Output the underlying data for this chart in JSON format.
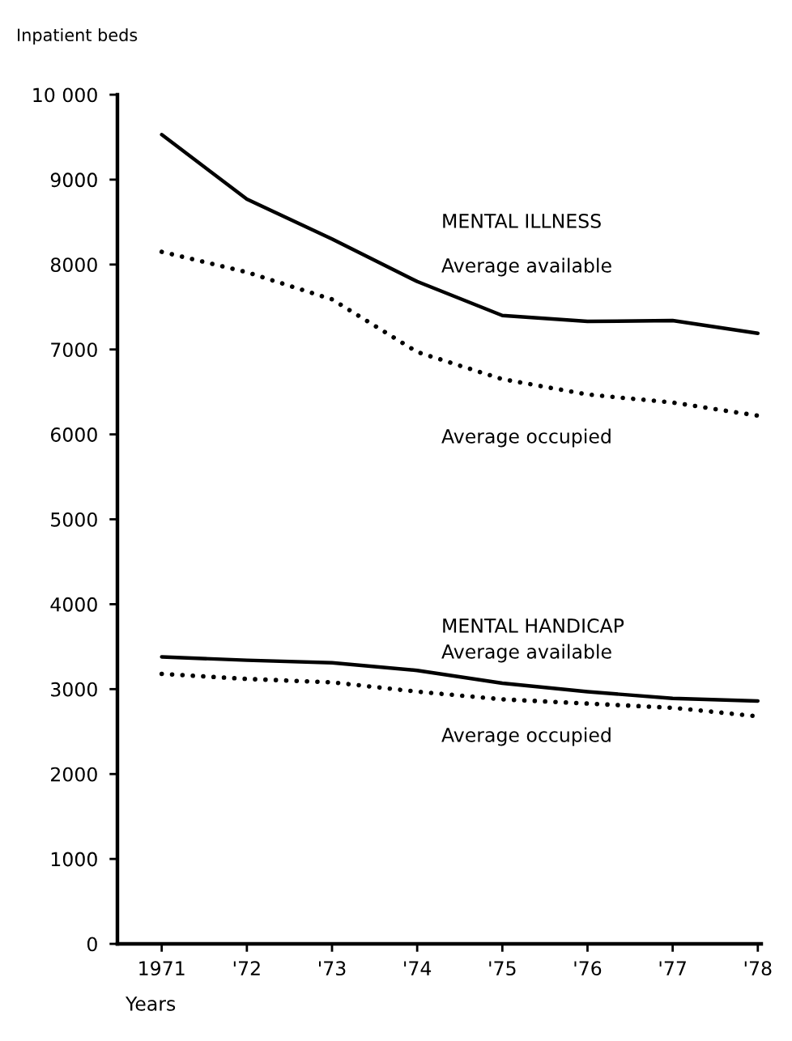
{
  "chart_data": {
    "type": "line",
    "ylabel": "Inpatient beds",
    "xlabel": "Years",
    "categories": [
      "1971",
      "'72",
      "'73",
      "'74",
      "'75",
      "'76",
      "'77",
      "'78"
    ],
    "ylim": [
      0,
      10000
    ],
    "yticks": [
      0,
      1000,
      2000,
      3000,
      4000,
      5000,
      6000,
      7000,
      8000,
      9000,
      {
        "value": 10000,
        "label": "10 000"
      }
    ],
    "grid": false,
    "legend": false,
    "marker": "none",
    "annotations": [
      "MENTAL ILLNESS",
      "MENTAL HANDICAP"
    ],
    "series": [
      {
        "name": "Average available",
        "color": "#000000",
        "line_style": "solid",
        "values": [
          9530,
          8770,
          8300,
          7800,
          7400,
          7330,
          7340,
          7190
        ]
      },
      {
        "name": "Average occupied",
        "color": "#000000",
        "line_style": "dotted",
        "values": [
          8150,
          7910,
          7590,
          6970,
          6650,
          6470,
          6375,
          6220
        ]
      },
      {
        "name": "Average available",
        "color": "#000000",
        "line_style": "solid",
        "values": [
          3380,
          3340,
          3310,
          3220,
          3070,
          2970,
          2890,
          2860
        ]
      },
      {
        "name": "Average occupied",
        "color": "#000000",
        "line_style": "dotted",
        "values": [
          3180,
          3120,
          3080,
          2970,
          2880,
          2830,
          2780,
          2680
        ]
      }
    ]
  }
}
